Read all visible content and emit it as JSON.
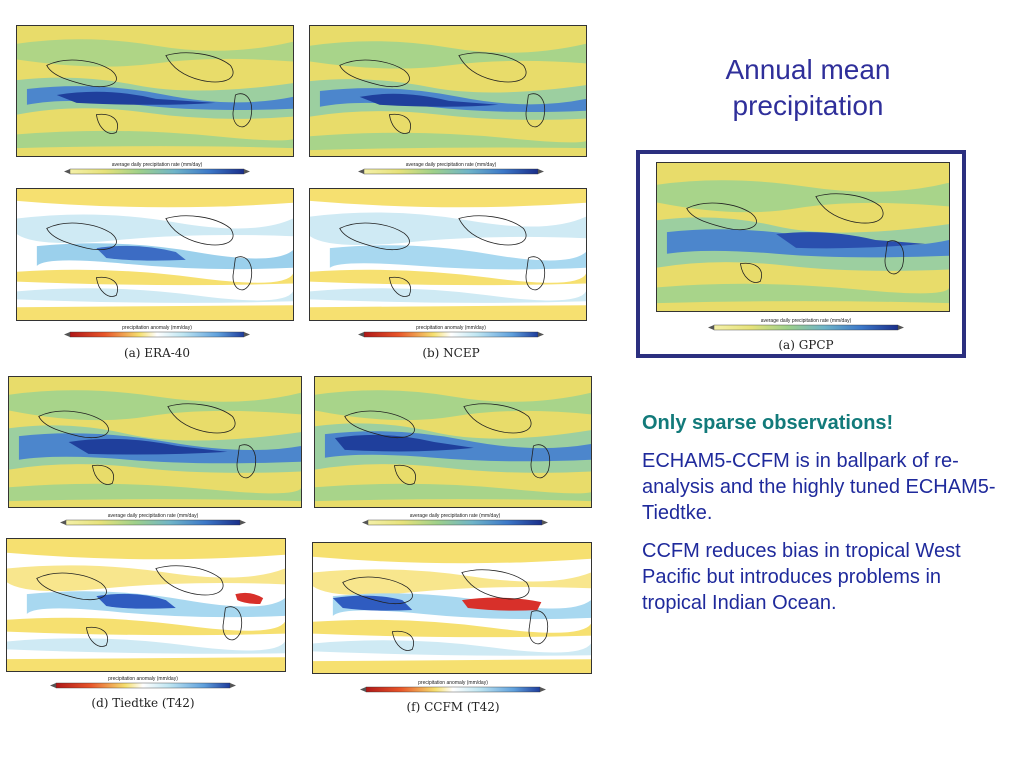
{
  "title": {
    "line1": "Annual mean",
    "line2": "precipitation"
  },
  "notes": {
    "heading": "Only sparse observations!",
    "para1": "ECHAM5-CCFM is in ballpark of re-analysis and the highly tuned ECHAM5-Tiedtke.",
    "para2": "CCFM reduces bias in tropical West Pacific but introduces problems in tropical Indian Ocean."
  },
  "colorbars": {
    "rate": "average daily precipitation rate  (mm/day)",
    "anomaly": "precipitation anomaly  (mm/day)"
  },
  "panels": {
    "era40": "(a) ERA-40",
    "ncep": "(b) NCEP",
    "gpcp": "(a) GPCP",
    "tiedtke": "(d) Tiedtke (T42)",
    "ccfm": "(f) CCFM (T42)"
  },
  "colors": {
    "title": "#2f2f9a",
    "heading": "#127a7a",
    "body": "#1f2a9c",
    "frame": "#2b2f7f",
    "land": "#e8dc6a",
    "wet": "#3c78c8",
    "dry": "#d8302a"
  }
}
